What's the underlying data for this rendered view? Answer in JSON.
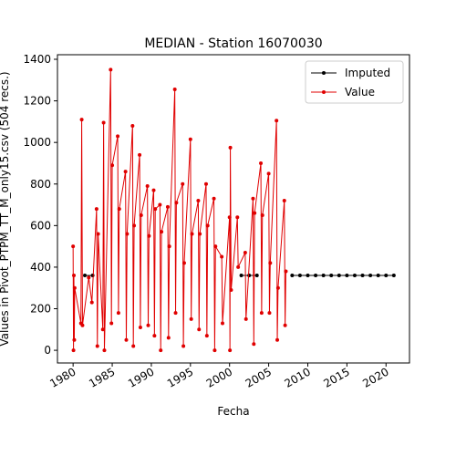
{
  "chart_data": {
    "type": "line",
    "title": "MEDIAN - Station 16070030",
    "xlabel": "Fecha",
    "ylabel": "Values in Pivot_PTPM_TT_M_only15.csv (504 recs.)",
    "xlim": [
      1978,
      2023
    ],
    "ylim": [
      -61,
      1422
    ],
    "xticks": [
      1980,
      1985,
      1990,
      1995,
      2000,
      2005,
      2010,
      2015,
      2020
    ],
    "yticks": [
      0,
      200,
      400,
      600,
      800,
      1000,
      1200,
      1400
    ],
    "legend": "upper right",
    "series": [
      {
        "name": "Imputed",
        "color": "#000000",
        "x": [
          1981.5,
          1982.5,
          1990,
          2001.5,
          2002.5,
          2003.5,
          2006,
          2008,
          2009,
          2010,
          2011,
          2012,
          2013,
          2014,
          2015,
          2016,
          2017,
          2018,
          2019,
          2020,
          2021
        ],
        "values": [
          360,
          360,
          null,
          360,
          360,
          360,
          null,
          360,
          360,
          360,
          360,
          360,
          360,
          360,
          360,
          360,
          360,
          360,
          360,
          360,
          360
        ]
      },
      {
        "name": "Value",
        "color": "#e00000",
        "x": [
          1980.0,
          1980.05,
          1980.1,
          1980.15,
          1980.2,
          1981.0,
          1981.1,
          1981.2,
          1982.0,
          1982.4,
          1983.0,
          1983.1,
          1983.2,
          1983.8,
          1983.9,
          1984.0,
          1984.8,
          1984.9,
          1985.0,
          1985.7,
          1985.8,
          1985.9,
          1986.7,
          1986.8,
          1986.9,
          1987.6,
          1987.7,
          1987.8,
          1988.5,
          1988.6,
          1988.7,
          1989.5,
          1989.6,
          1989.7,
          1990.3,
          1990.4,
          1990.5,
          1991.1,
          1991.2,
          1991.3,
          1992.1,
          1992.2,
          1992.3,
          1993.0,
          1993.1,
          1993.2,
          1994.0,
          1994.1,
          1994.2,
          1995.0,
          1995.1,
          1995.2,
          1996.0,
          1996.1,
          1996.2,
          1997.0,
          1997.1,
          1997.2,
          1998.0,
          1998.1,
          1998.2,
          1999.0,
          1999.1,
          2000.0,
          2000.05,
          2000.1,
          2000.2,
          2001.0,
          2001.1,
          2002.0,
          2002.1,
          2003.0,
          2003.1,
          2003.2,
          2004.0,
          2004.1,
          2004.2,
          2005.0,
          2005.1,
          2005.2,
          2006.0,
          2006.1,
          2006.2,
          2007.0,
          2007.1,
          2007.2
        ],
        "values": [
          500,
          0,
          360,
          50,
          300,
          130,
          1110,
          120,
          350,
          230,
          680,
          20,
          560,
          100,
          1095,
          0,
          1350,
          130,
          890,
          1030,
          180,
          680,
          860,
          50,
          560,
          1080,
          20,
          600,
          940,
          110,
          650,
          790,
          120,
          550,
          770,
          70,
          680,
          700,
          0,
          570,
          690,
          60,
          500,
          1255,
          180,
          710,
          800,
          20,
          420,
          1015,
          150,
          560,
          720,
          100,
          560,
          800,
          70,
          600,
          730,
          0,
          500,
          450,
          130,
          640,
          0,
          975,
          290,
          640,
          400,
          470,
          150,
          730,
          30,
          660,
          900,
          180,
          650,
          850,
          180,
          420,
          1105,
          50,
          300,
          720,
          120,
          380
        ]
      }
    ]
  }
}
